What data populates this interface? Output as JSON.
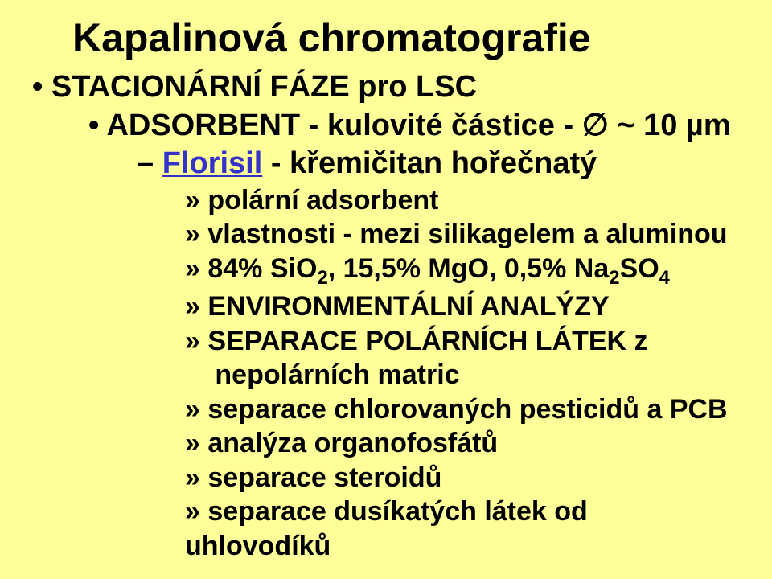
{
  "slide": {
    "background_color": "#ffff99",
    "text_color": "#000000",
    "link_color": "#3333cc",
    "font_family": "Arial",
    "title": "Kapalinová chromatografie",
    "title_fontsize": 50,
    "body_fontsize_lvl1": 38,
    "body_fontsize_lvl4": 34,
    "bullets": {
      "lvl1": {
        "marker": "•",
        "text": "STACIONÁRNÍ FÁZE pro LSC"
      },
      "lvl2": {
        "marker": "•",
        "text": "ADSORBENT - kulovité částice - ∅  ~ 10 µm"
      },
      "lvl3": {
        "marker": "–",
        "link_text": "Florisil",
        "rest": " - křemičitan hořečnatý"
      },
      "lvl4": {
        "marker": "»",
        "items": [
          {
            "text": "polární adsorbent"
          },
          {
            "text": "vlastnosti - mezi silikagelem a aluminou"
          },
          {
            "prefix": "84% SiO",
            "sub1": "2",
            "mid": ", 15,5% MgO, 0,5% Na",
            "sub2": "2",
            "mid2": "SO",
            "sub3": "4",
            "suffix": ""
          },
          {
            "text": "ENVIRONMENTÁLNÍ ANALÝZY"
          },
          {
            "text": "SEPARACE POLÁRNÍCH LÁTEK z nepolárních matric"
          },
          {
            "text": "separace chlorovaných pesticidů a PCB"
          },
          {
            "text": "analýza organofosfátů"
          },
          {
            "text": "separace steroidů"
          },
          {
            "text": "separace dusíkatých látek od uhlovodíků"
          }
        ]
      }
    }
  }
}
